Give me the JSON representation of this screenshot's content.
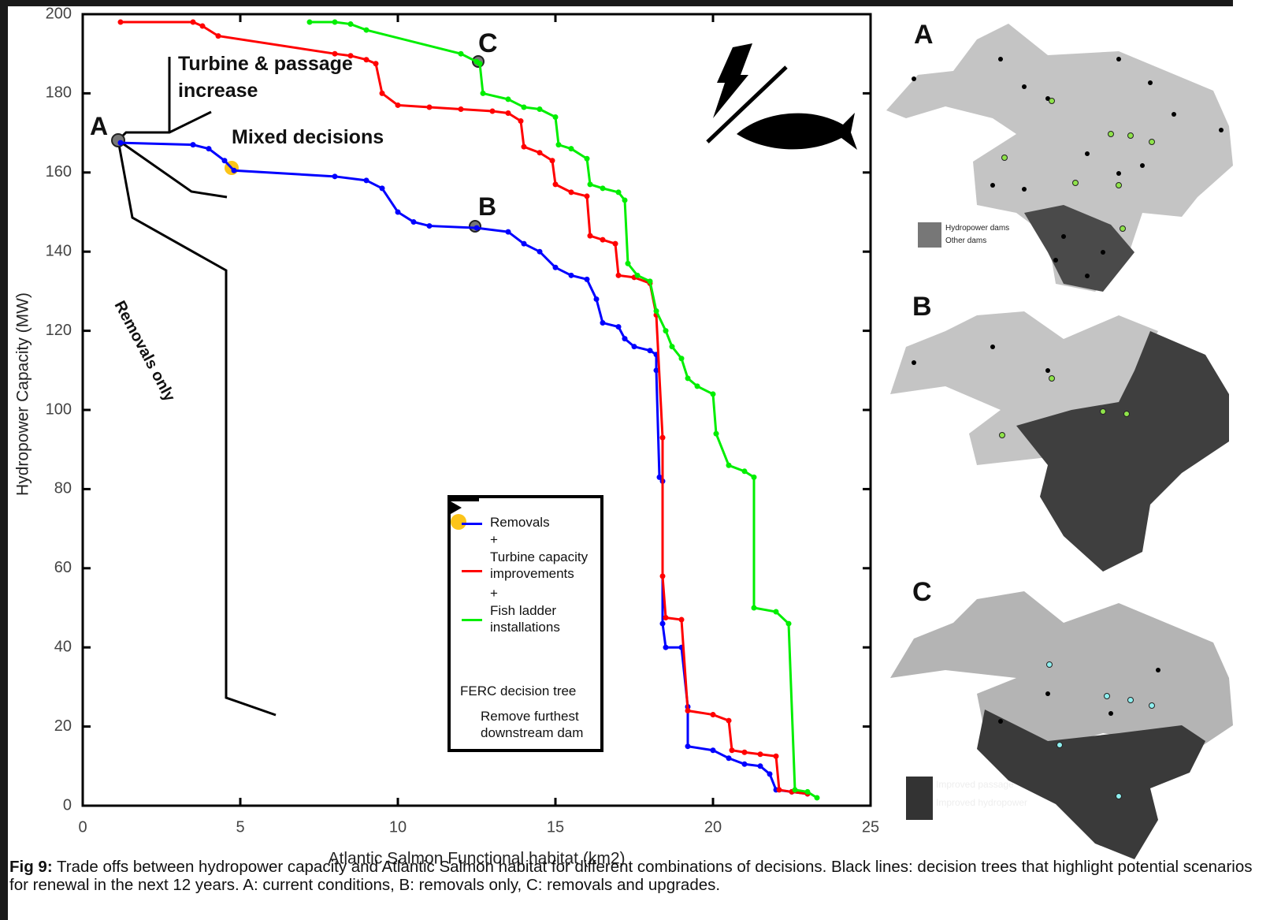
{
  "chart_data": {
    "type": "line",
    "x_label": "Atlantic Salmon Functional habitat (km2)",
    "y_label": "Hydropower Capacity (MW)",
    "xlim": [
      0,
      25
    ],
    "xticks": [
      0,
      5,
      10,
      15,
      20,
      25
    ],
    "ylim": [
      0,
      200
    ],
    "yticks": [
      0,
      20,
      40,
      60,
      80,
      100,
      120,
      140,
      160,
      180,
      200
    ],
    "series": [
      {
        "name": "Removals",
        "color": "#0000ff",
        "x": [
          1.2,
          3.5,
          4,
          4.5,
          4.8,
          8,
          9,
          9.5,
          10,
          10.5,
          11,
          12.5,
          13.5,
          14,
          14.5,
          15,
          15.5,
          16,
          16.3,
          16.5,
          17,
          17.2,
          17.5,
          18,
          18.2,
          18.2,
          18.3,
          18.4,
          18.4,
          18.5,
          19,
          19.2,
          19.2,
          20,
          20.5,
          21,
          21.5,
          21.8,
          22,
          22.5,
          23
        ],
        "values": [
          167.5,
          167,
          166,
          163,
          160.5,
          159,
          158,
          156,
          150,
          147.5,
          146.5,
          146,
          145,
          142,
          140,
          136,
          134,
          133,
          128,
          122,
          121,
          118,
          116,
          115,
          114,
          110,
          83,
          82,
          46,
          40,
          40,
          25,
          15,
          14,
          12,
          10.5,
          10,
          8,
          4,
          3.5,
          3
        ]
      },
      {
        "name": "Turbine capacity improvements",
        "color": "#ff0000",
        "x": [
          1.2,
          3.5,
          3.8,
          4.3,
          8,
          8.5,
          9,
          9.3,
          9.5,
          10,
          11,
          12,
          13,
          13.5,
          13.9,
          14,
          14.5,
          14.9,
          15,
          15.5,
          16,
          16.1,
          16.5,
          16.9,
          17,
          17.5,
          18,
          18.2,
          18.4,
          18.4,
          18.5,
          19,
          19.2,
          20,
          20.5,
          20.6,
          21,
          21.5,
          22,
          22.1,
          22.5,
          23
        ],
        "values": [
          198,
          198,
          197,
          194.5,
          190,
          189.5,
          188.5,
          187.5,
          180,
          177,
          176.5,
          176,
          175.5,
          175,
          173,
          166.5,
          165,
          163,
          157,
          155,
          154,
          144,
          143,
          142,
          134,
          133.5,
          132,
          124,
          93,
          58,
          47.5,
          47,
          24,
          23,
          21.5,
          14,
          13.5,
          13,
          12.5,
          4,
          3.5,
          3
        ]
      },
      {
        "name": "Fish ladder installations",
        "color": "#00ee00",
        "x": [
          7.2,
          8,
          8.5,
          9,
          12,
          12.5,
          12.6,
          12.7,
          13.5,
          14,
          14.5,
          15,
          15.1,
          15.5,
          16,
          16.1,
          16.5,
          17,
          17.2,
          17.3,
          17.6,
          18,
          18.2,
          18.5,
          18.7,
          19,
          19.2,
          19.5,
          20,
          20.1,
          20.5,
          21,
          21.3,
          21.3,
          22,
          22.4,
          22.6,
          23,
          23.3
        ],
        "values": [
          198,
          198,
          197.5,
          196,
          190,
          188,
          187.5,
          180,
          178.5,
          176.5,
          176,
          174,
          167,
          166,
          163.5,
          157,
          156,
          155,
          153,
          137,
          134,
          132.5,
          125,
          120,
          116,
          113,
          108,
          106,
          104,
          94,
          86,
          84.5,
          83,
          50,
          49,
          46,
          4,
          3.5,
          2
        ]
      }
    ],
    "annotations": [
      "A",
      "B",
      "C",
      "Turbine & passage increase",
      "Mixed decisions",
      "Removals only"
    ],
    "legend_notes": [
      "+",
      "+",
      "FERC decision tree",
      "Remove furthest downstream dam"
    ]
  },
  "maps": [
    {
      "label": "A",
      "legend": [
        "Hydropower dams",
        "Other dams"
      ]
    },
    {
      "label": "B"
    },
    {
      "label": "C",
      "legend": [
        "Improved passage",
        "Improved hydropower"
      ]
    }
  ],
  "caption": {
    "label": "Fig 9:",
    "text": "Trade offs between hydropower capacity and Atlantic Salmon habitat for different combinations of decisions. Black lines: decision trees that highlight potential scenarios for renewal in the next 12 years. A: current conditions, B: removals only, C: removals and upgrades."
  }
}
